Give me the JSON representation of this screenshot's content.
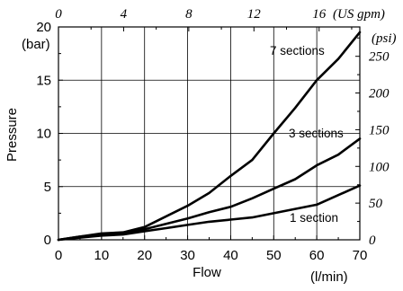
{
  "chart_data": {
    "type": "line",
    "xlabel": "Flow",
    "x_unit": "(l/min)",
    "ylabel": "Pressure",
    "y_unit": "(bar)",
    "xlim": [
      0,
      70
    ],
    "ylim": [
      0,
      20
    ],
    "x_ticks": [
      0,
      10,
      20,
      30,
      40,
      50,
      60,
      70
    ],
    "y_ticks": [
      0,
      5,
      10,
      15,
      20
    ],
    "top_axis": {
      "unit": "(US gpm)",
      "ticks": [
        0,
        4,
        8,
        12,
        16
      ],
      "lim": [
        0,
        18.5
      ]
    },
    "right_axis": {
      "unit": "(psi)",
      "ticks": [
        0,
        50,
        100,
        150,
        200,
        250
      ],
      "lim": [
        0,
        290
      ]
    },
    "grid": true,
    "series": [
      {
        "name": "7 sections",
        "x": [
          0,
          5,
          10,
          15,
          20,
          25,
          30,
          35,
          40,
          45,
          50,
          55,
          60,
          65,
          70
        ],
        "y": [
          0,
          0.3,
          0.6,
          0.7,
          1.2,
          2.2,
          3.2,
          4.4,
          6.0,
          7.5,
          10.0,
          12.4,
          15.0,
          17.0,
          19.5
        ]
      },
      {
        "name": "3 sections",
        "x": [
          0,
          5,
          10,
          15,
          20,
          25,
          30,
          35,
          40,
          45,
          50,
          55,
          60,
          65,
          70
        ],
        "y": [
          0,
          0.3,
          0.5,
          0.6,
          1.0,
          1.5,
          2.0,
          2.6,
          3.1,
          3.9,
          4.8,
          5.7,
          7.0,
          8.0,
          9.5
        ]
      },
      {
        "name": "1 section",
        "x": [
          0,
          5,
          10,
          15,
          20,
          25,
          30,
          35,
          40,
          45,
          50,
          55,
          60,
          65,
          70
        ],
        "y": [
          0,
          0.2,
          0.4,
          0.5,
          0.8,
          1.1,
          1.4,
          1.7,
          1.9,
          2.1,
          2.5,
          2.9,
          3.3,
          4.2,
          5.1
        ]
      }
    ]
  }
}
